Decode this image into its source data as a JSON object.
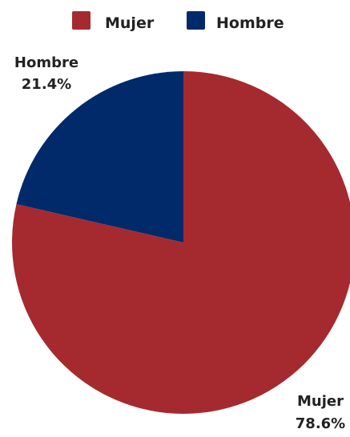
{
  "chart_data": {
    "type": "pie",
    "title": "",
    "categories": [
      "Mujer",
      "Hombre"
    ],
    "values": [
      78.6,
      21.4
    ],
    "value_labels": [
      "78.6%",
      "21.4%"
    ],
    "colors": [
      "#a52a30",
      "#002a6a"
    ],
    "legend": {
      "placement": "top-center",
      "entries": [
        "Mujer",
        "Hombre"
      ]
    },
    "start_angle": "12 o'clock",
    "direction": "clockwise"
  }
}
